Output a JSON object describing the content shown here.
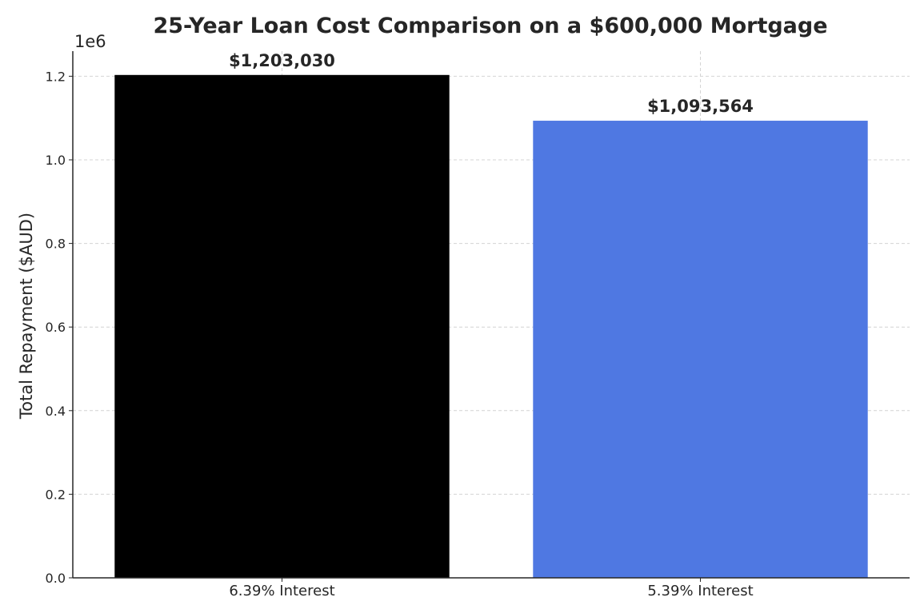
{
  "chart_data": {
    "type": "bar",
    "title": "25-Year Loan Cost Comparison on a $600,000 Mortgage",
    "ylabel": "Total Repayment ($AUD)",
    "xlabel": "",
    "y_offset_label": "1e6",
    "categories": [
      "6.39% Interest",
      "5.39% Interest"
    ],
    "values": [
      1203030,
      1093564
    ],
    "data_labels": [
      "$1,203,030",
      "$1,093,564"
    ],
    "colors": [
      "#000000",
      "#4f78e2"
    ],
    "ylim": [
      0,
      1.26
    ],
    "yticks": [
      0.0,
      0.2,
      0.4,
      0.6,
      0.8,
      1.0,
      1.2
    ],
    "ytick_labels": [
      "0.0",
      "0.2",
      "0.4",
      "0.6",
      "0.8",
      "1.0",
      "1.2"
    ],
    "grid": true,
    "legend": "none"
  }
}
